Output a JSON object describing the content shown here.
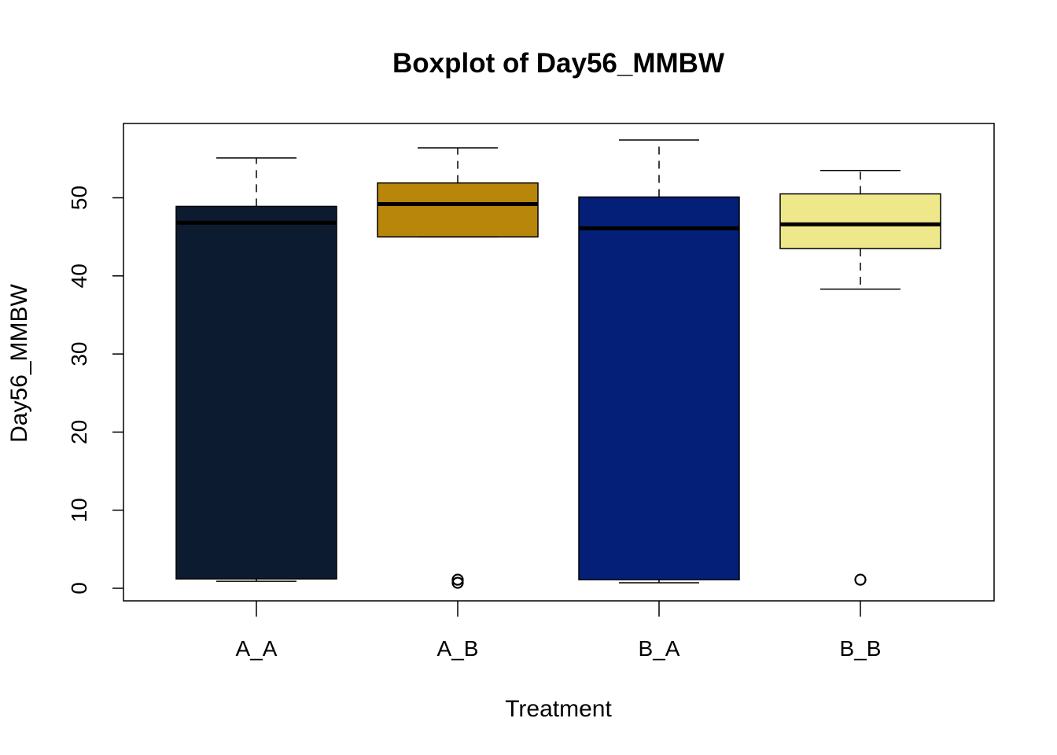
{
  "chart_data": {
    "type": "boxplot",
    "title": "Boxplot of Day56_MMBW",
    "xlabel": "Treatment",
    "ylabel": "Day56_MMBW",
    "ylim": [
      0,
      57.5
    ],
    "yticks": [
      0,
      10,
      20,
      30,
      40,
      50
    ],
    "categories": [
      "A_A",
      "A_B",
      "B_A",
      "B_B"
    ],
    "boxes": [
      {
        "category": "A_A",
        "color": "#0d1b31",
        "whisker_low": 0.9,
        "q1": 1.2,
        "median": 46.8,
        "q3": 48.9,
        "whisker_high": 55.1,
        "outliers": []
      },
      {
        "category": "A_B",
        "color": "#b8860b",
        "whisker_low": 45.0,
        "q1": 45.0,
        "median": 49.2,
        "q3": 51.9,
        "whisker_high": 56.4,
        "outliers": [
          0.7,
          1.1
        ]
      },
      {
        "category": "B_A",
        "color": "#031f77",
        "whisker_low": 0.7,
        "q1": 1.1,
        "median": 46.1,
        "q3": 50.1,
        "whisker_high": 57.4,
        "outliers": []
      },
      {
        "category": "B_B",
        "color": "#eee88b",
        "whisker_low": 38.3,
        "q1": 43.5,
        "median": 46.6,
        "q3": 50.5,
        "whisker_high": 53.5,
        "outliers": [
          1.1
        ]
      }
    ],
    "grid": false,
    "legend": "none"
  }
}
